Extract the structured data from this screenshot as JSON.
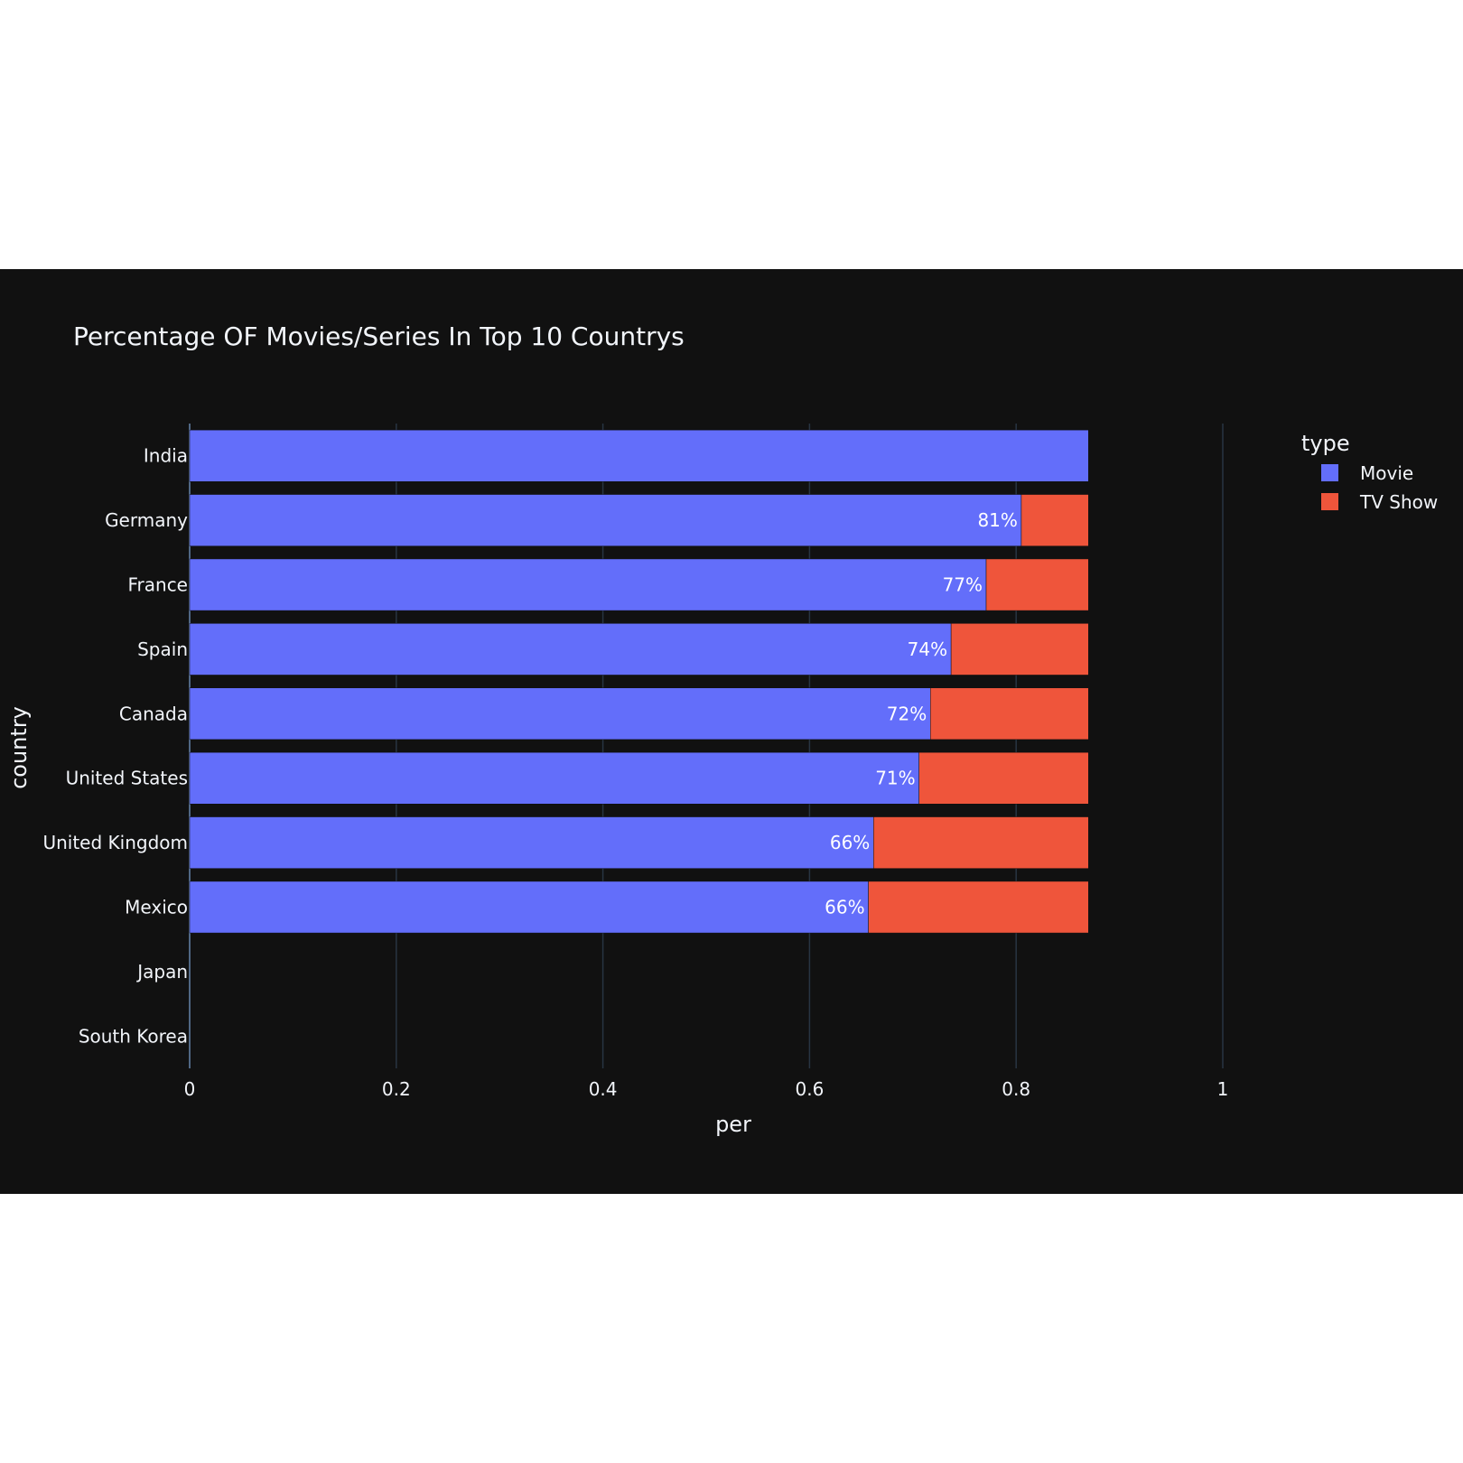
{
  "chart_data": {
    "type": "bar",
    "orientation": "horizontal",
    "barmode": "stack",
    "title": "Percentage OF Movies/Series In Top 10 Countrys",
    "xlabel": "per",
    "ylabel": "country",
    "xlim": [
      0,
      1.15
    ],
    "x_ticks": [
      "0",
      "0.2",
      "0.4",
      "0.6",
      "0.8",
      "1"
    ],
    "x_tick_values": [
      0,
      0.2,
      0.4,
      0.6,
      0.8,
      1
    ],
    "grid": true,
    "legend_title": "type",
    "legend_position": "top-right",
    "background": "#111111",
    "categories": [
      "India",
      "Germany",
      "France",
      "Spain",
      "Canada",
      "United States",
      "United Kingdom",
      "Mexico",
      "Japan",
      "South Korea"
    ],
    "series": [
      {
        "name": "Movie",
        "color": "#636efa",
        "values": [
          0.87,
          0.805,
          0.771,
          0.737,
          0.717,
          0.706,
          0.662,
          0.657,
          null,
          null
        ],
        "labels": [
          "",
          "81%",
          "77%",
          "74%",
          "72%",
          "71%",
          "66%",
          "66%",
          "",
          ""
        ]
      },
      {
        "name": "TV Show",
        "color": "#ef553b",
        "values": [
          0.0,
          0.065,
          0.099,
          0.133,
          0.153,
          0.164,
          0.208,
          0.213,
          null,
          null
        ],
        "labels": [
          "",
          "",
          "",
          "",
          "",
          "",
          "",
          "",
          "",
          ""
        ]
      }
    ]
  }
}
